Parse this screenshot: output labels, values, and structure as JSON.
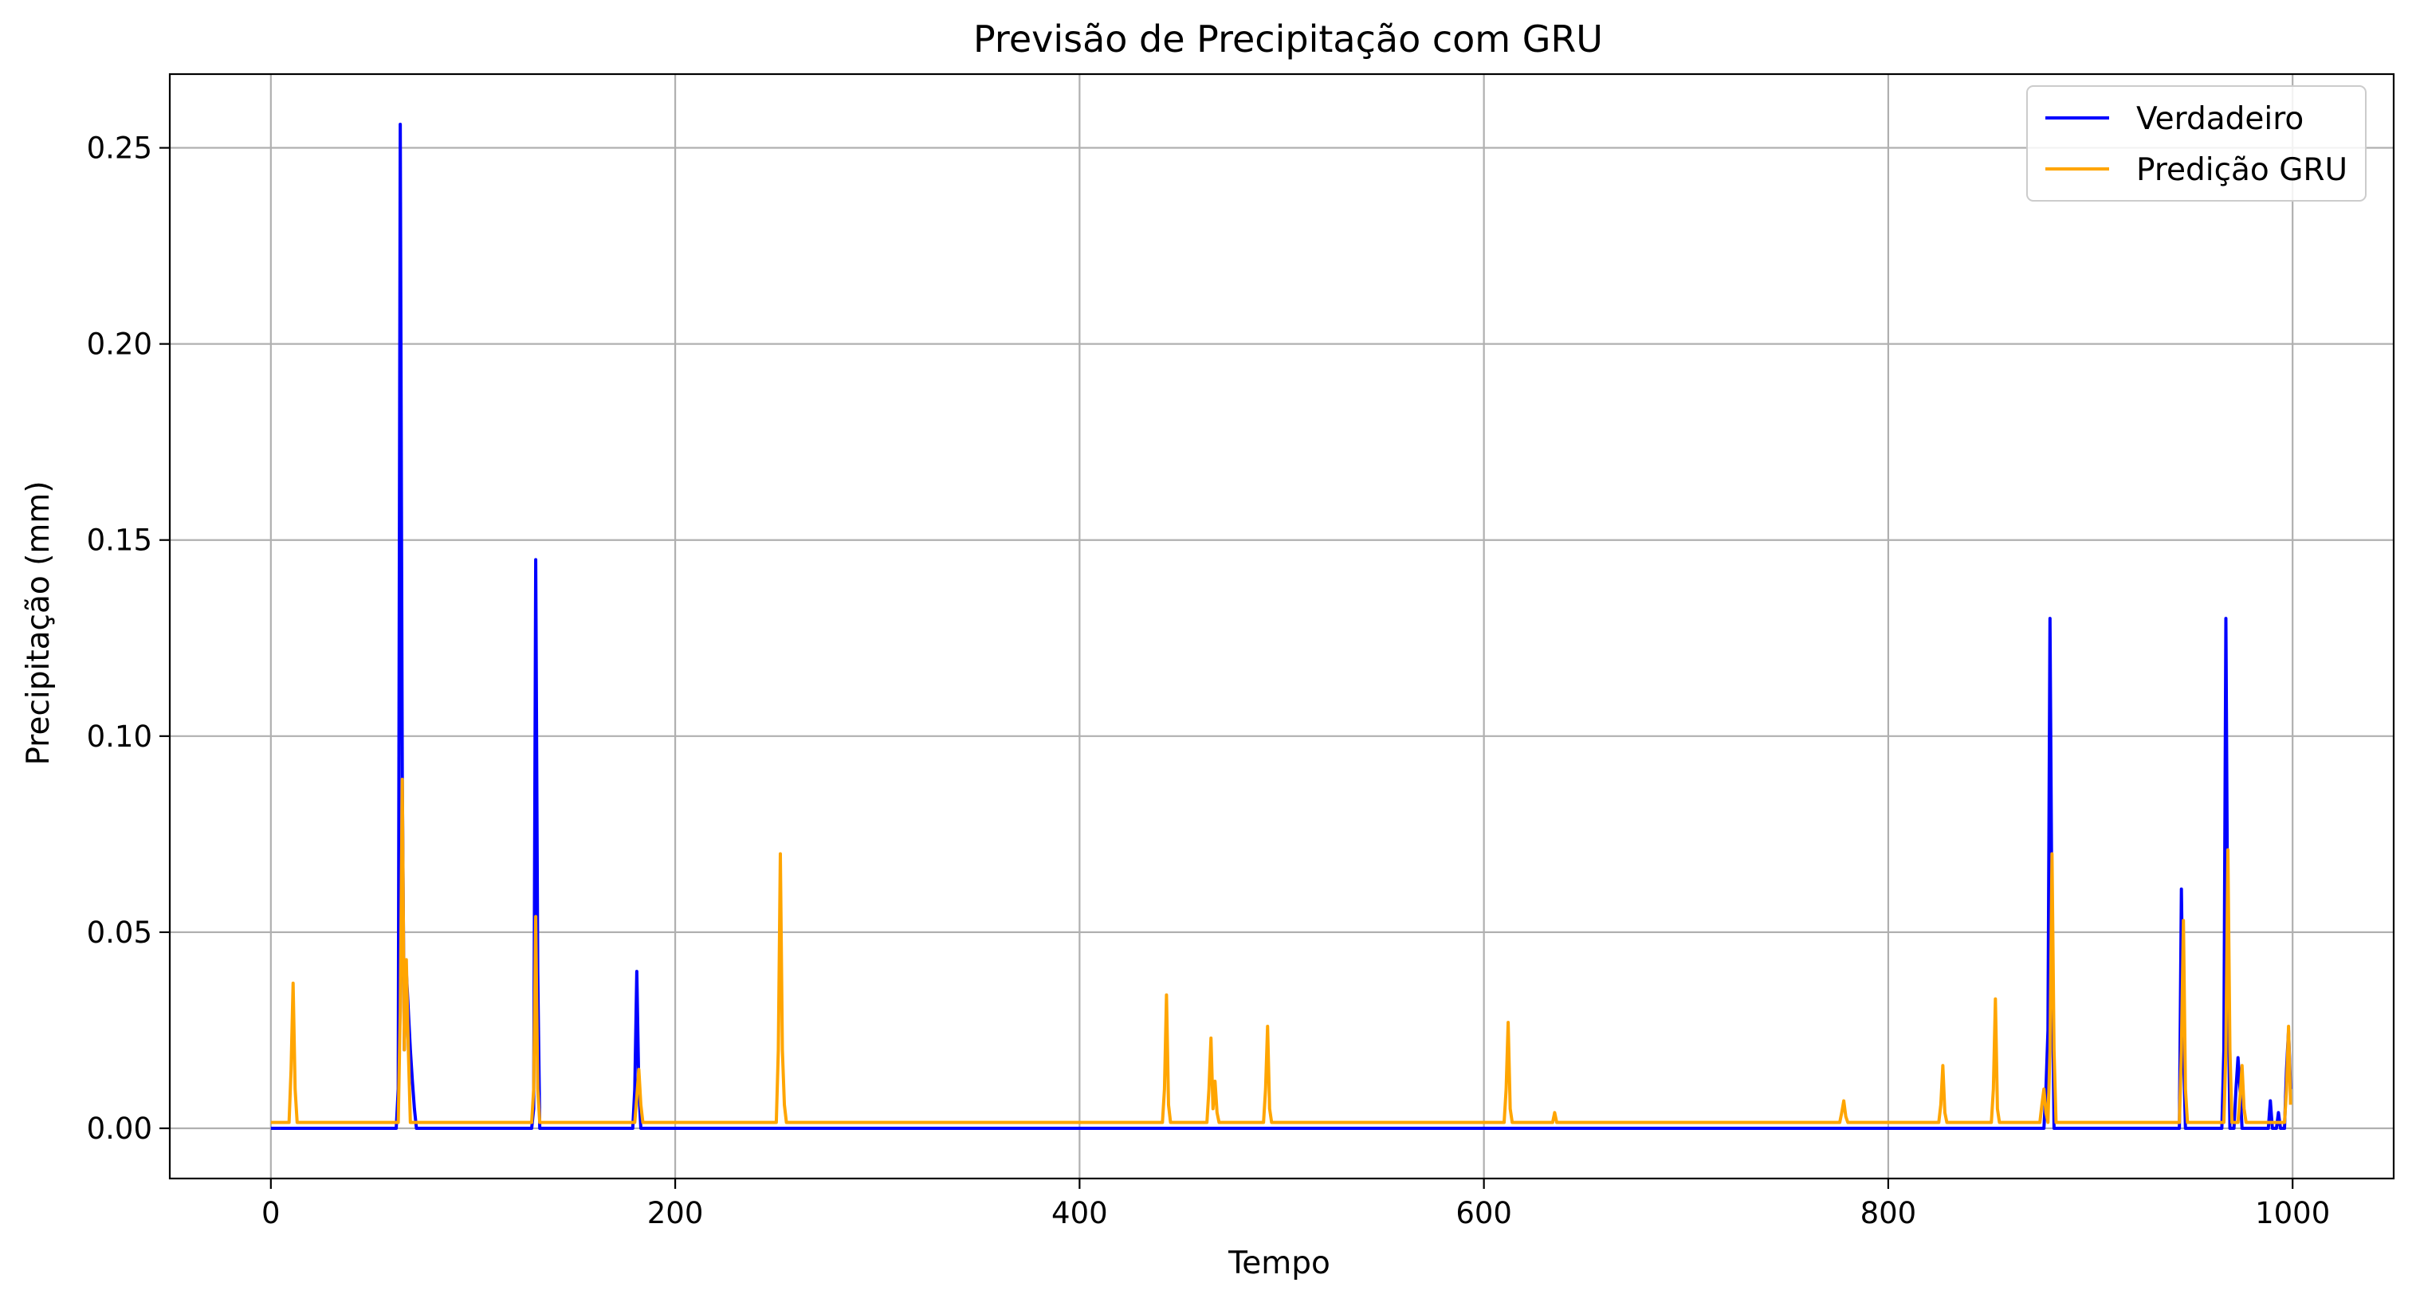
{
  "chart_data": {
    "type": "line",
    "title": "Previsão de Precipitação com GRU",
    "xlabel": "Tempo",
    "ylabel": "Precipitação (mm)",
    "xlim": [
      -50,
      1050
    ],
    "ylim": [
      -0.0128,
      0.2688
    ],
    "xticks": [
      0,
      200,
      400,
      600,
      800,
      1000
    ],
    "xtick_labels": [
      "0",
      "200",
      "400",
      "600",
      "800",
      "1000"
    ],
    "yticks": [
      0.0,
      0.05,
      0.1,
      0.15,
      0.2,
      0.25
    ],
    "ytick_labels": [
      "0.00",
      "0.05",
      "0.10",
      "0.15",
      "0.20",
      "0.25"
    ],
    "grid": true,
    "legend_position": "top-right",
    "n_points": 1000,
    "colors": {
      "Verdadeiro": "#0000ff",
      "Predição GRU": "#ffa500"
    },
    "series": [
      {
        "name": "Verdadeiro",
        "color": "#0000ff",
        "baseline": 0.0,
        "spikes": [
          [
            63,
            0.01
          ],
          [
            64,
            0.256
          ],
          [
            65,
            0.09
          ],
          [
            66,
            0.02
          ],
          [
            67,
            0.04
          ],
          [
            68,
            0.03
          ],
          [
            69,
            0.02
          ],
          [
            70,
            0.012
          ],
          [
            71,
            0.005
          ],
          [
            130,
            0.005
          ],
          [
            131,
            0.145
          ],
          [
            132,
            0.04
          ],
          [
            180,
            0.01
          ],
          [
            181,
            0.04
          ],
          [
            182,
            0.01
          ],
          [
            878,
            0.01
          ],
          [
            879,
            0.025
          ],
          [
            880,
            0.13
          ],
          [
            881,
            0.05
          ],
          [
            945,
            0.061
          ],
          [
            946,
            0.02
          ],
          [
            966,
            0.02
          ],
          [
            967,
            0.13
          ],
          [
            968,
            0.04
          ],
          [
            972,
            0.01
          ],
          [
            973,
            0.018
          ],
          [
            974,
            0.01
          ],
          [
            989,
            0.007
          ],
          [
            993,
            0.004
          ],
          [
            997,
            0.015
          ],
          [
            998,
            0.025
          ],
          [
            999,
            0.01
          ]
        ]
      },
      {
        "name": "Predição GRU",
        "color": "#ffa500",
        "baseline": 0.0015,
        "spikes": [
          [
            10,
            0.015
          ],
          [
            11,
            0.037
          ],
          [
            12,
            0.01
          ],
          [
            64,
            0.03
          ],
          [
            65,
            0.089
          ],
          [
            66,
            0.02
          ],
          [
            67,
            0.043
          ],
          [
            68,
            0.02
          ],
          [
            130,
            0.01
          ],
          [
            131,
            0.054
          ],
          [
            132,
            0.01
          ],
          [
            181,
            0.008
          ],
          [
            182,
            0.015
          ],
          [
            183,
            0.006
          ],
          [
            251,
            0.02
          ],
          [
            252,
            0.07
          ],
          [
            253,
            0.02
          ],
          [
            254,
            0.006
          ],
          [
            442,
            0.01
          ],
          [
            443,
            0.034
          ],
          [
            444,
            0.006
          ],
          [
            464,
            0.01
          ],
          [
            465,
            0.023
          ],
          [
            466,
            0.005
          ],
          [
            467,
            0.012
          ],
          [
            468,
            0.004
          ],
          [
            492,
            0.01
          ],
          [
            493,
            0.026
          ],
          [
            494,
            0.005
          ],
          [
            611,
            0.01
          ],
          [
            612,
            0.027
          ],
          [
            613,
            0.005
          ],
          [
            635,
            0.004
          ],
          [
            777,
            0.004
          ],
          [
            778,
            0.007
          ],
          [
            779,
            0.003
          ],
          [
            826,
            0.006
          ],
          [
            827,
            0.016
          ],
          [
            828,
            0.004
          ],
          [
            852,
            0.01
          ],
          [
            853,
            0.033
          ],
          [
            854,
            0.005
          ],
          [
            876,
            0.006
          ],
          [
            877,
            0.01
          ],
          [
            878,
            0.004
          ],
          [
            880,
            0.02
          ],
          [
            881,
            0.07
          ],
          [
            882,
            0.02
          ],
          [
            945,
            0.02
          ],
          [
            946,
            0.053
          ],
          [
            947,
            0.01
          ],
          [
            967,
            0.02
          ],
          [
            968,
            0.071
          ],
          [
            969,
            0.02
          ],
          [
            974,
            0.008
          ],
          [
            975,
            0.016
          ],
          [
            976,
            0.005
          ],
          [
            997,
            0.01
          ],
          [
            998,
            0.026
          ],
          [
            999,
            0.006
          ]
        ]
      }
    ]
  }
}
